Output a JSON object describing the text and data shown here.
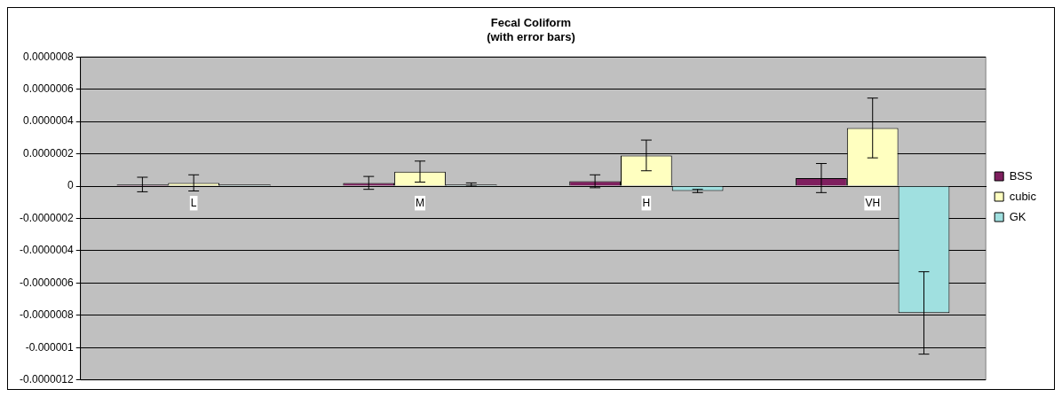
{
  "chart_data": {
    "type": "bar",
    "title": "Fecal Coliform",
    "subtitle": "(with error bars)",
    "categories": [
      "L",
      "M",
      "H",
      "VH"
    ],
    "series": [
      {
        "name": "BSS",
        "color": "#7f1f5f",
        "values": [
          1e-08,
          2e-08,
          3e-08,
          5e-08
        ],
        "errors": [
          4.5e-08,
          4e-08,
          4e-08,
          9e-08
        ]
      },
      {
        "name": "cubic",
        "color": "#ffffc0",
        "values": [
          2e-08,
          9e-08,
          1.9e-07,
          3.6e-07
        ],
        "errors": [
          5e-08,
          6.5e-08,
          9.5e-08,
          1.85e-07
        ]
      },
      {
        "name": "GK",
        "color": "#a0e0e0",
        "values": [
          1e-08,
          1e-08,
          -3e-08,
          -7.85e-07
        ],
        "errors": [
          null,
          1e-08,
          1e-08,
          2.55e-07
        ]
      }
    ],
    "ylim": [
      -1.2e-06,
      8e-07
    ],
    "yticks": [
      {
        "value": -1.2e-06,
        "label": "-0.0000012"
      },
      {
        "value": -1e-06,
        "label": "-0.000001"
      },
      {
        "value": -8e-07,
        "label": "-0.0000008"
      },
      {
        "value": -6e-07,
        "label": "-0.0000006"
      },
      {
        "value": -4e-07,
        "label": "-0.0000004"
      },
      {
        "value": -2e-07,
        "label": "-0.0000002"
      },
      {
        "value": 0,
        "label": "0"
      },
      {
        "value": 2e-07,
        "label": "0.0000002"
      },
      {
        "value": 4e-07,
        "label": "0.0000004"
      },
      {
        "value": 6e-07,
        "label": "0.0000006"
      },
      {
        "value": 8e-07,
        "label": "0.0000008"
      }
    ],
    "grid": "y",
    "legend": "right"
  }
}
